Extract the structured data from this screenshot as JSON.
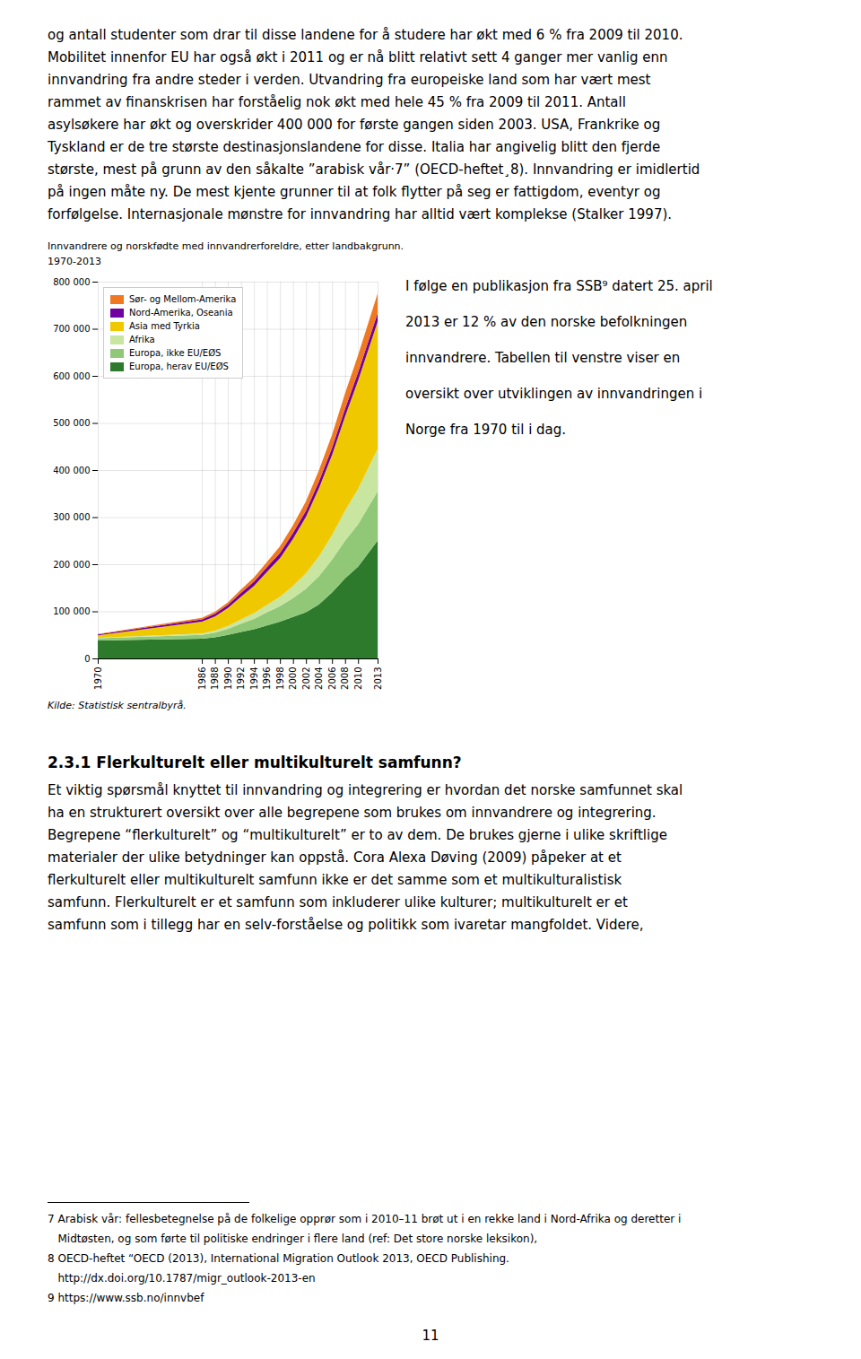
{
  "page_title_lines": [
    "og antall studenter som drar til disse landene for å studere har økt med 6 % fra 2009 til 2010.",
    "Mobilitet innenfor EU har også økt i 2011 og er nå blitt relativt sett 4 ganger mer vanlig enn",
    "innvandring fra andre steder i verden. Utvandring fra europeiske land som har vært mest",
    "rammet av finanskrisen har forståelig nok økt med hele 45 % fra 2009 til 2011. Antall",
    "asylsøkere har økt og overskrider 400 000 for første gangen siden 2003. USA, Frankrike og",
    "Tyskland er de tre største destinasjonslandene for disse. Italia har angivelig blitt den fjerde",
    "største, mest på grunn av den såkalte ”arabisk vår·7” (OECD-heftet¸8). Innvandring er imidlertid",
    "på ingen måte ny. De mest kjente grunner til at  folk flytter på seg er fattigdom, eventyr og",
    "forfølgelse. Internasjonale mønstre for innvandring har alltid vært komplekse (Stalker 1997)."
  ],
  "chart_data": {
    "type": "area",
    "stacked": true,
    "title": "Innvandrere og norskfødte med innvandrerforeldre, etter landbakgrunn.",
    "subtitle": "1970-2013",
    "caption": "Kilde: Statistisk sentralbyrå.",
    "x": [
      1970,
      1986,
      1988,
      1990,
      1992,
      1994,
      1996,
      1998,
      2000,
      2002,
      2004,
      2006,
      2008,
      2010,
      2013
    ],
    "series": [
      {
        "name": "Europa, herav EU/EØS",
        "color": "#2d7a2d",
        "values": [
          38000,
          42000,
          45000,
          50000,
          56000,
          62000,
          70000,
          78000,
          88000,
          98000,
          115000,
          140000,
          170000,
          195000,
          250000
        ]
      },
      {
        "name": "Europa, ikke EU/EØS",
        "color": "#90c878",
        "values": [
          5000,
          8000,
          10000,
          13000,
          18000,
          22000,
          28000,
          33000,
          40000,
          50000,
          60000,
          70000,
          80000,
          90000,
          105000
        ]
      },
      {
        "name": "Afrika",
        "color": "#c8e6a0",
        "values": [
          1000,
          3000,
          4000,
          6000,
          9000,
          12000,
          16000,
          20000,
          26000,
          33000,
          42000,
          52000,
          64000,
          75000,
          90000
        ]
      },
      {
        "name": "Asia med Tyrkia",
        "color": "#f0c800",
        "values": [
          5000,
          25000,
          30000,
          38000,
          48000,
          58000,
          70000,
          82000,
          100000,
          120000,
          145000,
          170000,
          200000,
          230000,
          270000
        ]
      },
      {
        "name": "Nord-Amerika, Oseania",
        "color": "#7000a0",
        "values": [
          2000,
          5000,
          6000,
          7000,
          8000,
          9000,
          10000,
          11000,
          12000,
          13000,
          14000,
          15000,
          16000,
          17000,
          18000
        ]
      },
      {
        "name": "Sør- og Mellom-Amerika",
        "color": "#f07820",
        "values": [
          1000,
          3000,
          4000,
          5000,
          7000,
          9000,
          11000,
          14000,
          17000,
          20000,
          24000,
          28000,
          33000,
          37000,
          42000
        ]
      }
    ],
    "xlim": [
      1970,
      2013
    ],
    "xticks": [
      1970,
      1986,
      1988,
      1990,
      1992,
      1994,
      1996,
      1998,
      2000,
      2002,
      2004,
      2006,
      2008,
      2010,
      2013
    ],
    "ylim": [
      0,
      800000
    ],
    "yticks": [
      0,
      {
        "value": 100000,
        "label": "100 000"
      },
      {
        "value": 200000,
        "label": "200 000"
      },
      {
        "value": 300000,
        "label": "300 000"
      },
      {
        "value": 400000,
        "label": "400 000"
      },
      {
        "value": 500000,
        "label": "500 000"
      },
      {
        "value": 600000,
        "label": "600 000"
      },
      {
        "value": 700000,
        "label": "700 000"
      },
      {
        "value": 800000,
        "label": "800 000"
      }
    ],
    "grid": true,
    "legend": "upper left"
  },
  "right_text_lines": [
    "I følge en publikasjon fra SSB⁹ datert 25. april",
    "2013 er 12 % av den norske befolkningen",
    "innvandrere. Tabellen til venstre viser en",
    "oversikt over utviklingen av innvandringen i",
    "Norge fra 1970 til i dag."
  ],
  "section_title": "2.3.1  Flerkulturelt eller multikulturelt samfunn?",
  "body_text": [
    "Et viktig spørsmål knyttet til innvandring og integrering er hvordan det norske samfunnet skal",
    "ha en strukturert oversikt over alle begrepene som brukes om innvandrere og integrering.",
    "Begrepene “flerkulturelt” og “multikulturelt” er to av dem. De brukes gjerne i ulike skriftlige",
    "materialer der ulike betydninger kan oppstå. Cora Alexa Døving (2009) påpeker at et",
    "flerkulturelt eller multikulturelt samfunn ikke er det samme som et multikulturalistisk",
    "samfunn. Flerkulturelt er et samfunn som inkluderer ulike kulturer; multikulturelt er et",
    "samfunn som i tillegg har en selv-forståelse og politikk som ivaretar mangfoldet. Videre,"
  ],
  "footnote_lines": [
    "7 Arabisk vår: fellesbetegnelse på de folkelige opprør som i 2010–11 brøt ut i en rekke land i Nord-Afrika og deretter i",
    "   Midtøsten, og som førte til politiske endringer i flere land (ref: Det store norske leksikon),",
    "8 OECD-heftet “OECD (2013), International Migration Outlook 2013, OECD Publishing.",
    "   http://dx.doi.org/10.1787/migr_outlook-2013-en",
    "9 https://www.ssb.no/innvbef"
  ],
  "page_number": "11"
}
